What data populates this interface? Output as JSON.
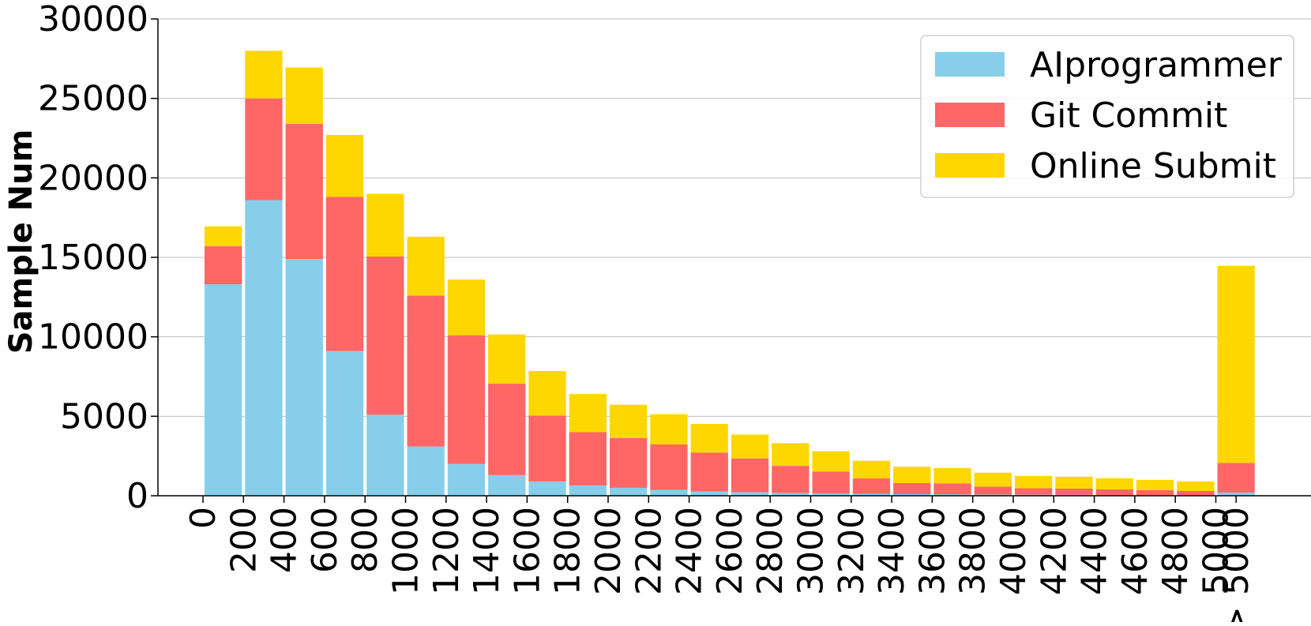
{
  "chart_data": {
    "type": "bar",
    "stacked": true,
    "ylabel": "Sample Num",
    "xlabel": "",
    "ylim": [
      0,
      30000
    ],
    "yticks": [
      0,
      5000,
      10000,
      15000,
      20000,
      25000,
      30000
    ],
    "grid": "horizontal",
    "legend_position": "top-right",
    "xtick_labels": [
      "0",
      "200",
      "400",
      "600",
      "800",
      "1000",
      "1200",
      "1400",
      "1600",
      "1800",
      "2000",
      "2200",
      "2400",
      "2600",
      "2800",
      "3000",
      "3200",
      "3400",
      "3600",
      "3800",
      "4000",
      "4200",
      "4400",
      "4600",
      "4800",
      "5000",
      "> 5000"
    ],
    "categories": [
      "0-200",
      "200-400",
      "400-600",
      "600-800",
      "800-1000",
      "1000-1200",
      "1200-1400",
      "1400-1600",
      "1600-1800",
      "1800-2000",
      "2000-2200",
      "2200-2400",
      "2400-2600",
      "2600-2800",
      "2800-3000",
      "3000-3200",
      "3200-3400",
      "3400-3600",
      "3600-3800",
      "3800-4000",
      "4000-4200",
      "4200-4400",
      "4400-4600",
      "4600-4800",
      "4800-5000",
      "> 5000"
    ],
    "series": [
      {
        "name": "AIprogrammer",
        "color": "#87CEEB",
        "values": [
          13300,
          18600,
          14900,
          9100,
          5100,
          3100,
          2000,
          1300,
          900,
          650,
          500,
          370,
          270,
          220,
          170,
          140,
          120,
          100,
          90,
          80,
          70,
          60,
          50,
          50,
          40,
          200
        ]
      },
      {
        "name": "Git Commit",
        "color": "#FF6666",
        "values": [
          2400,
          6400,
          8500,
          9700,
          9950,
          9500,
          8100,
          5750,
          4150,
          3350,
          3130,
          2860,
          2450,
          2130,
          1710,
          1380,
          970,
          700,
          690,
          500,
          400,
          400,
          350,
          300,
          260,
          1870
        ]
      },
      {
        "name": "Online Submit",
        "color": "#FFD700",
        "values": [
          1250,
          3000,
          3550,
          3900,
          3950,
          3700,
          3500,
          3100,
          2800,
          2400,
          2100,
          1900,
          1800,
          1500,
          1430,
          1280,
          1110,
          1030,
          970,
          870,
          780,
          740,
          700,
          650,
          600,
          12400
        ]
      }
    ]
  }
}
